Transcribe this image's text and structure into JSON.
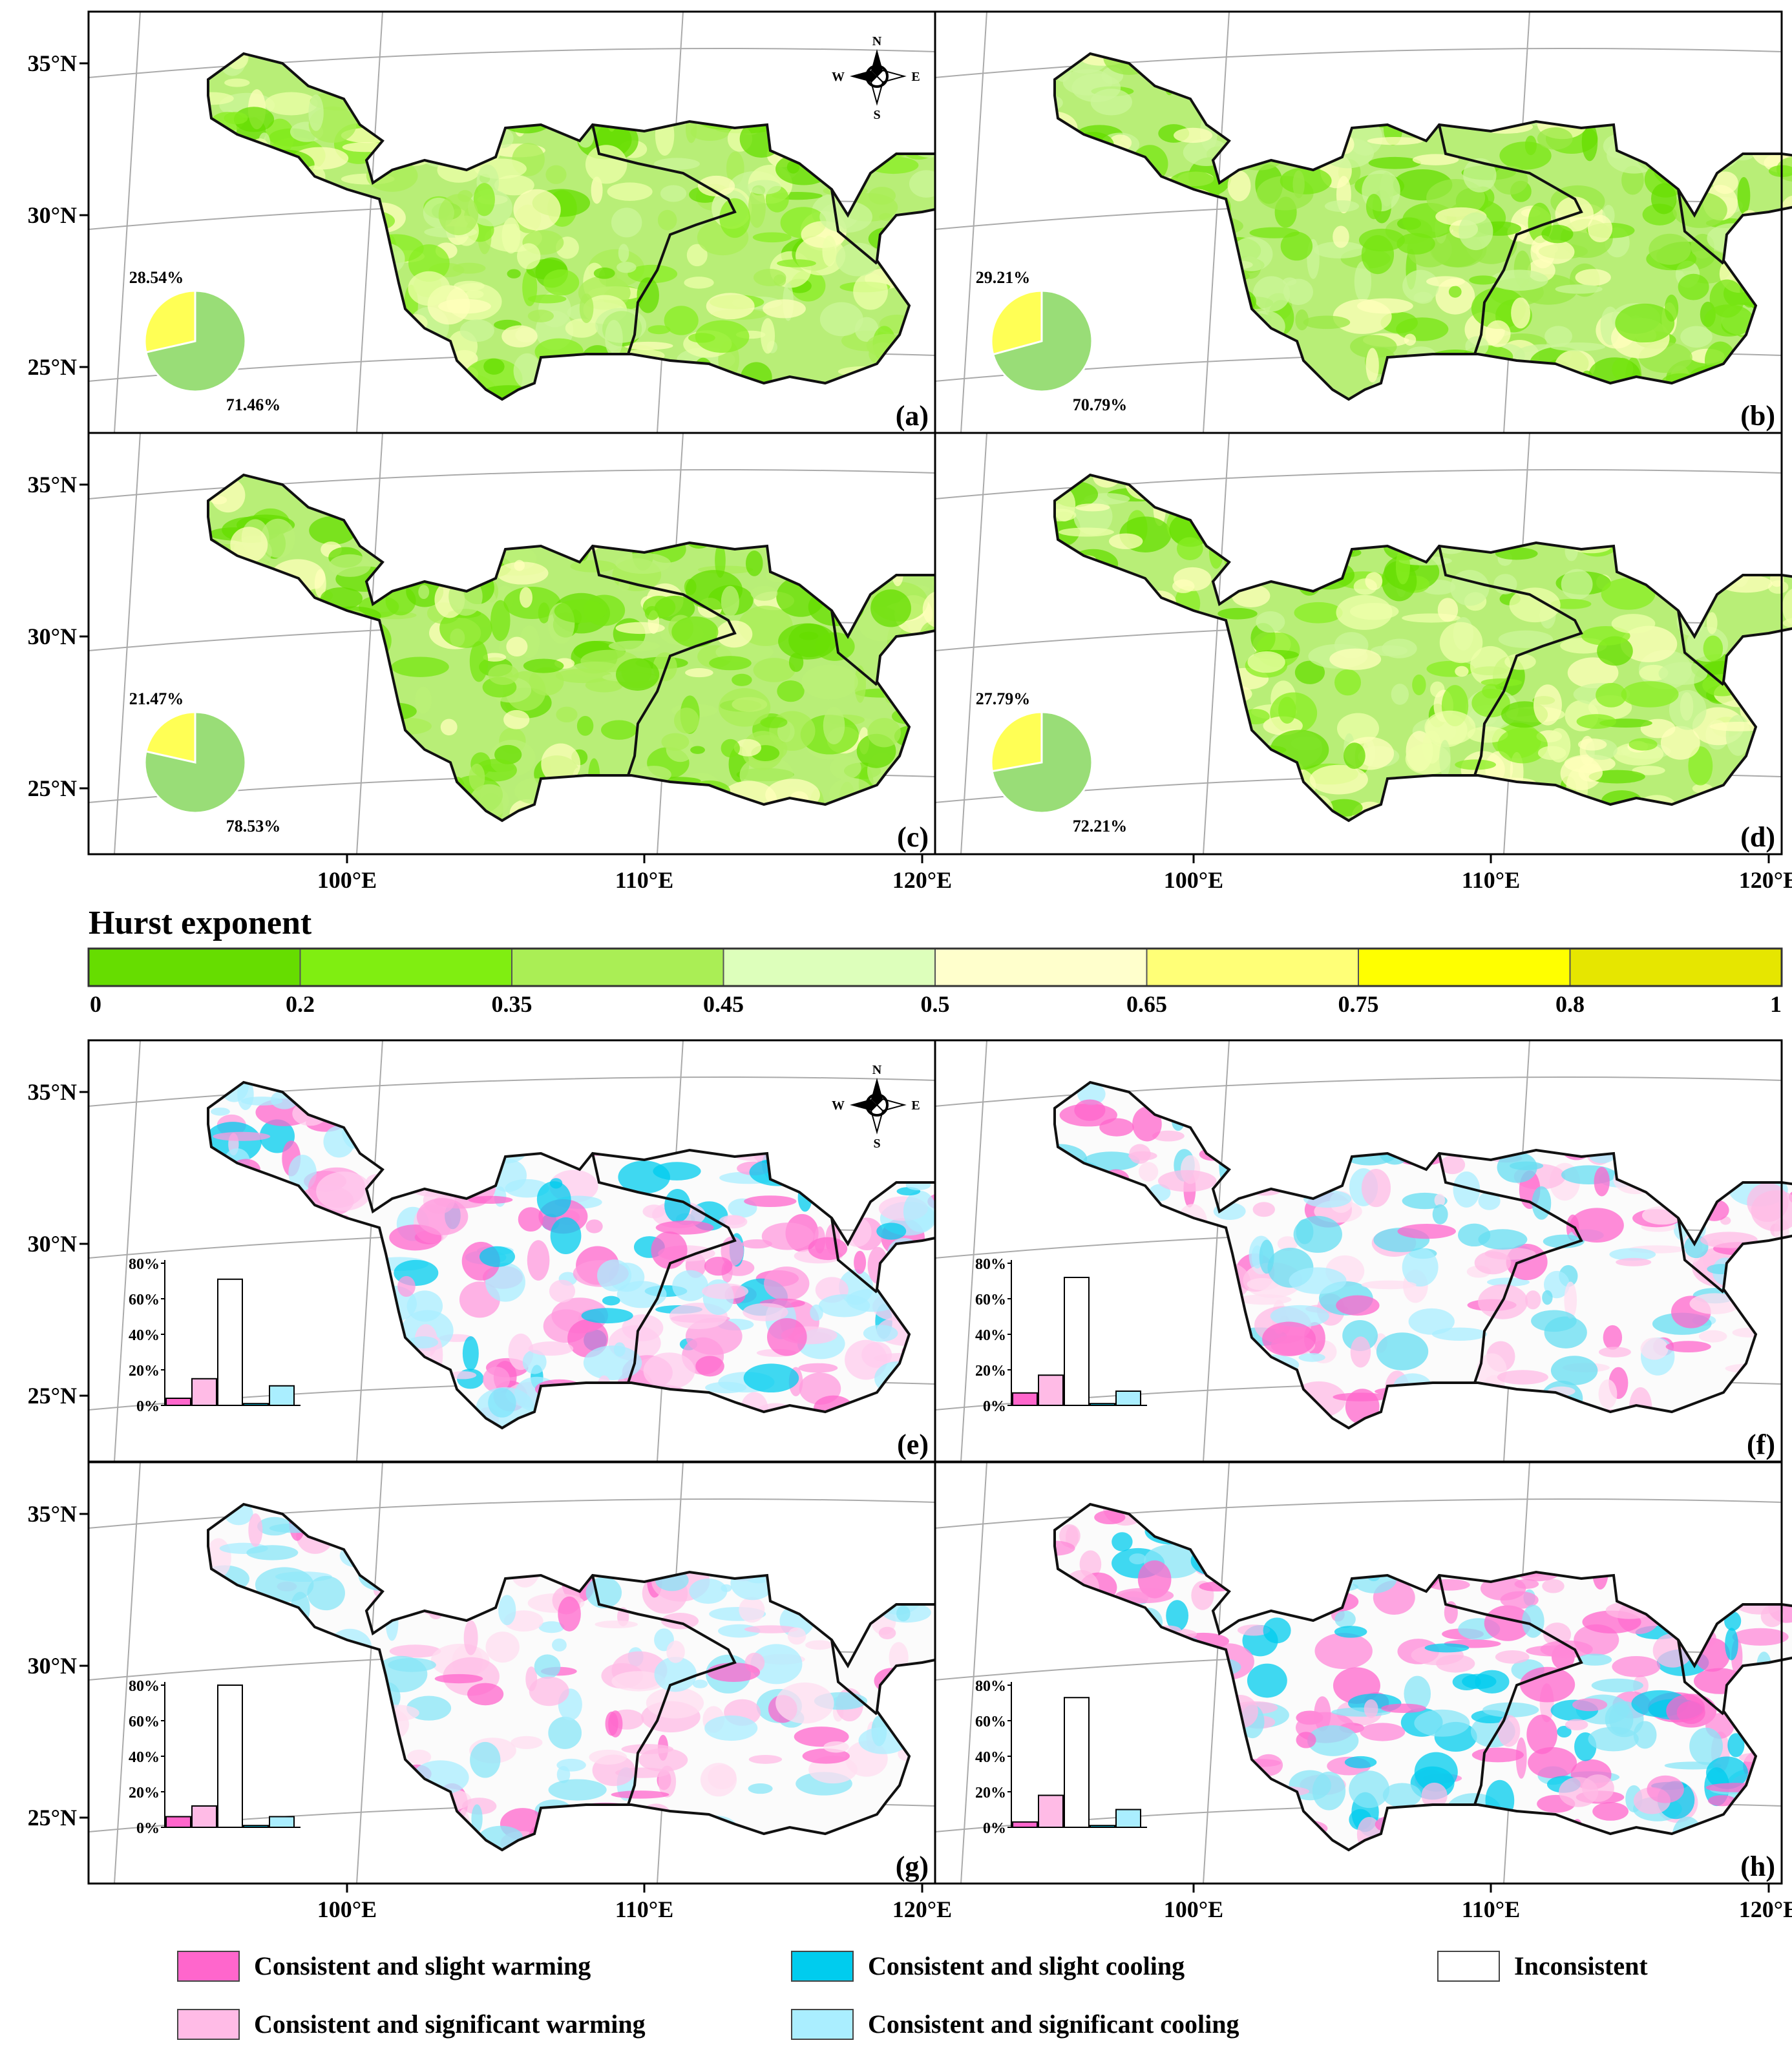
{
  "colorbar": {
    "title": "Hurst exponent",
    "ticks": [
      "0",
      "0.2",
      "0.35",
      "0.45",
      "0.5",
      "0.65",
      "0.75",
      "0.8",
      "1"
    ],
    "colors": [
      "#66dd00",
      "#80ee11",
      "#aaee55",
      "#ddffbb",
      "#ffffcc",
      "#ffff77",
      "#ffff00",
      "#e6e600"
    ]
  },
  "axes": {
    "lat_labels": [
      "35°N",
      "30°N",
      "25°N"
    ],
    "lon_labels": [
      "100°E",
      "110°E",
      "120°E"
    ]
  },
  "compass": {
    "n": "N",
    "s": "S",
    "e": "E",
    "w": "W"
  },
  "hurst_panels": [
    {
      "id": "(a)",
      "pie": {
        "yellow_label": "28.54%",
        "green_label": "71.46%",
        "yellow_fraction": 0.2854
      }
    },
    {
      "id": "(b)",
      "pie": {
        "yellow_label": "29.21%",
        "green_label": "70.79%",
        "yellow_fraction": 0.2921
      }
    },
    {
      "id": "(c)",
      "pie": {
        "yellow_label": "21.47%",
        "green_label": "78.53%",
        "yellow_fraction": 0.2147
      }
    },
    {
      "id": "(d)",
      "pie": {
        "yellow_label": "27.79%",
        "green_label": "72.21%",
        "yellow_fraction": 0.2779
      }
    }
  ],
  "trend_panels": [
    {
      "id": "(e)",
      "bars": [
        4,
        15,
        71,
        1,
        11
      ]
    },
    {
      "id": "(f)",
      "bars": [
        7,
        17,
        72,
        1,
        8
      ]
    },
    {
      "id": "(g)",
      "bars": [
        6,
        12,
        80,
        1,
        6
      ]
    },
    {
      "id": "(h)",
      "bars": [
        3,
        18,
        73,
        1,
        10
      ]
    }
  ],
  "bar_axis": {
    "ticks": [
      "0%",
      "20%",
      "40%",
      "60%",
      "80%"
    ],
    "max": 80
  },
  "bar_colors": [
    "#ff66cc",
    "#ffbbe6",
    "#ffffff",
    "#00ccee",
    "#aaeeff"
  ],
  "legend": [
    {
      "label": "Consistent and slight warming",
      "color": "#ff66cc"
    },
    {
      "label": "Consistent and slight cooling",
      "color": "#00ccee"
    },
    {
      "label": "Inconsistent",
      "color": "#ffffff"
    },
    {
      "label": "Consistent and significant warming",
      "color": "#ffbbe6"
    },
    {
      "label": "Consistent and significant cooling",
      "color": "#aaeeff"
    }
  ],
  "pie_colors": {
    "yellow": "#ffff55",
    "green": "#99dd77"
  }
}
